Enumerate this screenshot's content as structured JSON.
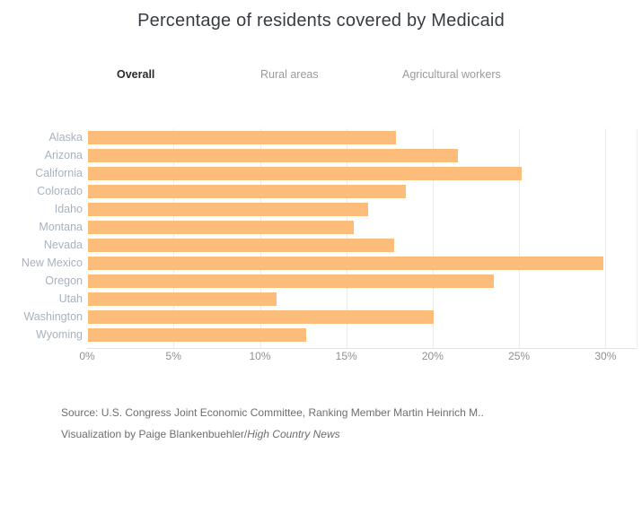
{
  "title": "Percentage of residents covered by Medicaid",
  "tabs": [
    {
      "label": "Overall",
      "active": true
    },
    {
      "label": "Rural areas",
      "active": false
    },
    {
      "label": "Agricultural workers",
      "active": false
    }
  ],
  "chart_data": {
    "type": "bar",
    "orientation": "horizontal",
    "title": "Percentage of residents covered by Medicaid",
    "xlabel": "",
    "ylabel": "",
    "categories": [
      "Alaska",
      "Arizona",
      "California",
      "Colorado",
      "Idaho",
      "Montana",
      "Nevada",
      "New Mexico",
      "Oregon",
      "Utah",
      "Washington",
      "Wyoming"
    ],
    "values": [
      17.8,
      21.4,
      25.1,
      18.4,
      16.2,
      15.4,
      17.7,
      29.8,
      23.5,
      10.9,
      20.0,
      12.6
    ],
    "x_ticks": [
      "0%",
      "5%",
      "10%",
      "15%",
      "20%",
      "25%",
      "30%"
    ],
    "x_tick_values": [
      0,
      5,
      10,
      15,
      20,
      25,
      30
    ],
    "xlim": [
      0,
      31.8
    ],
    "grid": true,
    "legend": false,
    "bar_color": "#FCBD7A",
    "gridline_color": "#ececec"
  },
  "footer": {
    "source": "Source: U.S. Congress Joint Economic Committee, Ranking Member Martin Heinrich M..",
    "credit_prefix": "Visualization by Paige Blankenbuehler/",
    "credit_italic": "High Country News"
  }
}
